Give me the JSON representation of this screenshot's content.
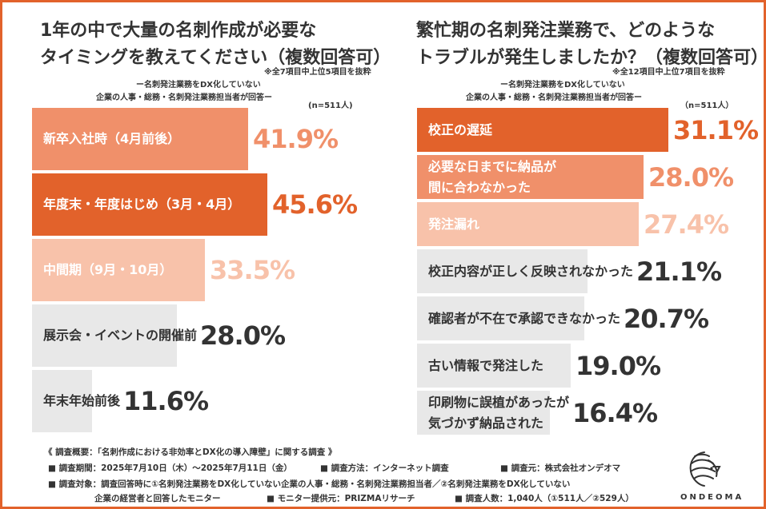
{
  "colors": {
    "accent": "#e2622b",
    "mid": "#f0906a",
    "light": "#f8c2aa",
    "gray": "#e8e8e8",
    "gray_text": "#333333"
  },
  "left": {
    "title_line1": "1年の中で大量の名刺作成が必要な",
    "title_line2": "タイミングを教えてください（複数回答可）",
    "note": "※全7項目中上位5項目を抜粋",
    "sub1": "ー名刺発注業務をDX化していない",
    "sub2": "企業の人事・総務・名刺発注業務担当者が回答ー",
    "n": "(n=511人)"
  },
  "right": {
    "title_line1": "繁忙期の名刺発注業務で、どのような",
    "title_line2": "トラブルが発生しましたか？（複数回答可）",
    "note": "※全12項目中上位7項目を抜粋",
    "sub1": "ー名刺発注業務をDX化していない",
    "sub2": "企業の人事・総務・名刺発注業務担当者が回答ー",
    "n": "（n=511人）"
  },
  "chart_data": [
    {
      "type": "bar",
      "orientation": "horizontal",
      "title": "1年の中で大量の名刺作成が必要なタイミングを教えてください（複数回答可）",
      "categories": [
        "新卒入社時（4月前後）",
        "年度末・年度はじめ（3月・4月）",
        "中間期（9月・10月）",
        "展示会・イベントの開催前",
        "年末年始前後"
      ],
      "values": [
        41.9,
        45.6,
        33.5,
        28.0,
        11.6
      ],
      "labels": [
        "41.9%",
        "45.6%",
        "33.5%",
        "28.0%",
        "11.6%"
      ],
      "tiers": [
        "mid",
        "accent",
        "light",
        "gray",
        "gray"
      ],
      "xlim": [
        0,
        100
      ]
    },
    {
      "type": "bar",
      "orientation": "horizontal",
      "title": "繁忙期の名刺発注業務で、どのようなトラブルが発生しましたか？（複数回答可）",
      "categories": [
        "校正の遅延",
        "必要な日までに納品が\n間に合わなかった",
        "発注漏れ",
        "校正内容が正しく反映されなかった",
        "確認者が不在で承認できなかった",
        "古い情報で発注した",
        "印刷物に誤植があったが\n気づかず納品された"
      ],
      "values": [
        31.1,
        28.0,
        27.4,
        21.1,
        20.7,
        19.0,
        16.4
      ],
      "labels": [
        "31.1%",
        "28.0%",
        "27.4%",
        "21.1%",
        "20.7%",
        "19.0%",
        "16.4%"
      ],
      "tiers": [
        "accent",
        "mid",
        "light",
        "gray",
        "gray",
        "gray",
        "gray"
      ],
      "xlim": [
        0,
        100
      ]
    }
  ],
  "footer": {
    "line1": "《 調査概要：「名刺作成における非効率とDX化の導入障壁」に関する調査 》",
    "period": "■ 調査期間：2025年7月10日（木）～2025年7月11日（金）",
    "method": "■ 調査方法：インターネット調査",
    "source": "■ 調査元：株式会社オンデオマ",
    "target": "■ 調査対象：調査回答時に①名刺発注業務をDX化していない企業の人事・総務・名刺発注業務担当者／②名刺発注業務をDX化していない",
    "target2": "企業の経営者と回答したモニター",
    "provider": "■ モニター提供元：PRIZMAリサーチ",
    "count": "■ 調査人数：1,040人（①511人／②529人）"
  },
  "logo": {
    "text": "ONDEOMA",
    "icon": "lion-head-icon"
  }
}
